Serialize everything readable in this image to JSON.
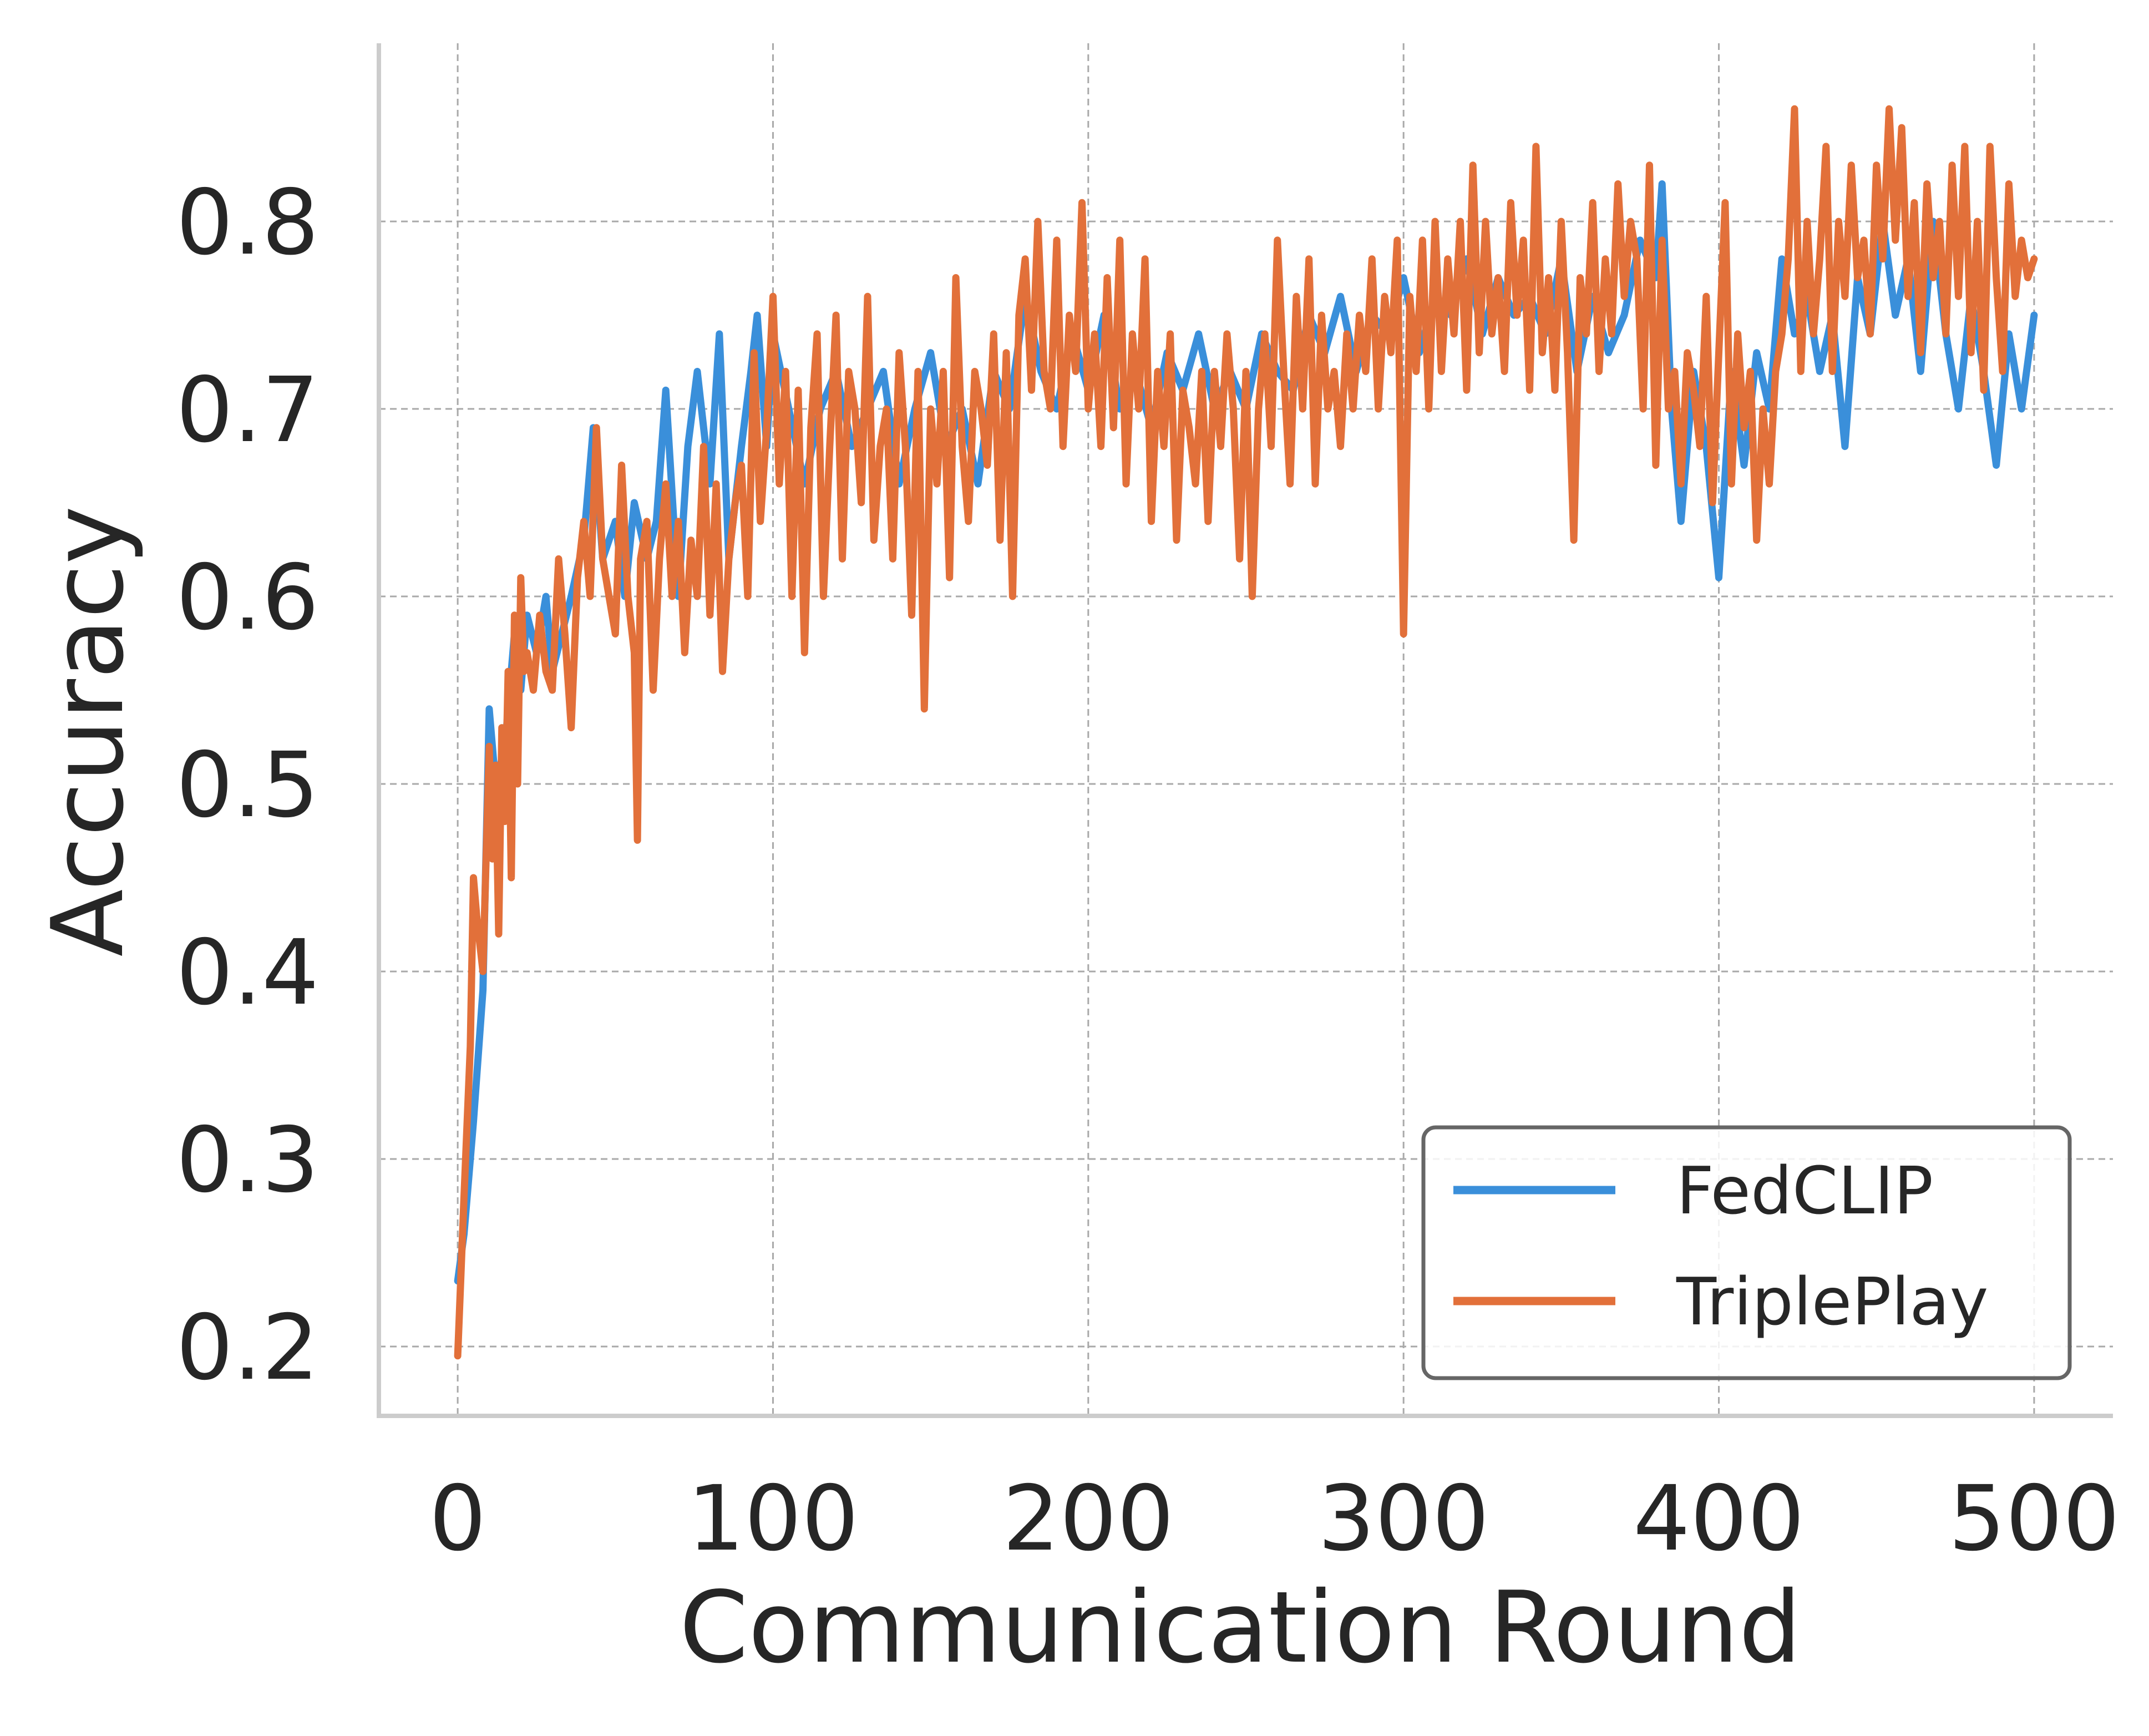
{
  "chart_data": {
    "type": "line",
    "title": "",
    "xlabel": "Communication Round",
    "ylabel": "Accuracy",
    "xlim": [
      -25,
      525
    ],
    "ylim": [
      0.163,
      0.895
    ],
    "xticks": [
      0,
      100,
      200,
      300,
      400,
      500
    ],
    "xtick_labels": [
      "0",
      "100",
      "200",
      "300",
      "400",
      "500"
    ],
    "yticks": [
      0.2,
      0.3,
      0.4,
      0.5,
      0.6,
      0.7,
      0.8
    ],
    "ytick_labels": [
      "0.2",
      "0.3",
      "0.4",
      "0.5",
      "0.6",
      "0.7",
      "0.8"
    ],
    "grid": true,
    "legend_position": "bottom-right",
    "legend": [
      "FedCLIP",
      "TriplePlay"
    ],
    "series": [
      {
        "name": "FedCLIP",
        "color": "#3a8fda",
        "x": [
          0,
          2,
          5,
          8,
          10,
          12,
          15,
          18,
          20,
          22,
          25,
          28,
          30,
          33,
          36,
          40,
          43,
          46,
          50,
          53,
          56,
          60,
          63,
          66,
          70,
          73,
          76,
          80,
          83,
          86,
          90,
          93,
          95,
          98,
          100,
          105,
          110,
          115,
          120,
          125,
          130,
          135,
          140,
          145,
          150,
          155,
          160,
          165,
          170,
          175,
          180,
          185,
          190,
          195,
          200,
          205,
          210,
          215,
          220,
          225,
          230,
          235,
          240,
          245,
          250,
          255,
          260,
          265,
          270,
          275,
          280,
          285,
          290,
          295,
          300,
          305,
          310,
          315,
          320,
          325,
          330,
          335,
          340,
          345,
          350,
          355,
          360,
          365,
          370,
          375,
          380,
          382,
          385,
          388,
          392,
          396,
          400,
          404,
          408,
          412,
          416,
          420,
          424,
          428,
          432,
          436,
          440,
          444,
          448,
          452,
          456,
          460,
          464,
          468,
          472,
          476,
          480,
          484,
          488,
          492,
          496,
          500
        ],
        "y": [
          0.235,
          0.26,
          0.32,
          0.39,
          0.54,
          0.5,
          0.52,
          0.58,
          0.55,
          0.59,
          0.57,
          0.6,
          0.56,
          0.58,
          0.6,
          0.63,
          0.69,
          0.62,
          0.64,
          0.6,
          0.65,
          0.62,
          0.64,
          0.71,
          0.6,
          0.68,
          0.72,
          0.66,
          0.74,
          0.62,
          0.68,
          0.72,
          0.75,
          0.68,
          0.74,
          0.7,
          0.66,
          0.7,
          0.72,
          0.68,
          0.7,
          0.72,
          0.66,
          0.7,
          0.73,
          0.68,
          0.7,
          0.66,
          0.72,
          0.7,
          0.76,
          0.72,
          0.7,
          0.74,
          0.71,
          0.75,
          0.7,
          0.72,
          0.69,
          0.73,
          0.71,
          0.74,
          0.7,
          0.72,
          0.7,
          0.74,
          0.72,
          0.71,
          0.75,
          0.73,
          0.76,
          0.72,
          0.75,
          0.74,
          0.77,
          0.73,
          0.76,
          0.75,
          0.78,
          0.74,
          0.77,
          0.75,
          0.76,
          0.74,
          0.78,
          0.72,
          0.76,
          0.73,
          0.75,
          0.79,
          0.77,
          0.82,
          0.7,
          0.64,
          0.72,
          0.68,
          0.61,
          0.72,
          0.67,
          0.73,
          0.7,
          0.78,
          0.74,
          0.76,
          0.72,
          0.75,
          0.68,
          0.77,
          0.74,
          0.8,
          0.75,
          0.78,
          0.72,
          0.8,
          0.74,
          0.7,
          0.76,
          0.72,
          0.67,
          0.74,
          0.7,
          0.75
        ]
      },
      {
        "name": "TriplePlay",
        "color": "#e2703a",
        "x": [
          0,
          2,
          4,
          5,
          6,
          8,
          10,
          11,
          12,
          13,
          14,
          15,
          16,
          17,
          18,
          19,
          20,
          21,
          22,
          24,
          26,
          28,
          30,
          32,
          34,
          36,
          38,
          40,
          42,
          44,
          46,
          48,
          50,
          52,
          54,
          56,
          57,
          58,
          60,
          62,
          64,
          66,
          68,
          70,
          72,
          74,
          76,
          78,
          80,
          82,
          84,
          86,
          88,
          90,
          92,
          94,
          96,
          98,
          100,
          102,
          104,
          106,
          108,
          110,
          112,
          114,
          116,
          118,
          120,
          122,
          124,
          126,
          128,
          130,
          132,
          134,
          136,
          138,
          140,
          142,
          144,
          146,
          148,
          150,
          152,
          154,
          156,
          158,
          160,
          162,
          164,
          166,
          168,
          170,
          172,
          174,
          176,
          178,
          180,
          182,
          184,
          186,
          188,
          190,
          192,
          194,
          196,
          198,
          200,
          202,
          204,
          206,
          208,
          210,
          212,
          214,
          216,
          218,
          220,
          222,
          224,
          226,
          228,
          230,
          232,
          234,
          236,
          238,
          240,
          242,
          244,
          246,
          248,
          250,
          252,
          254,
          256,
          258,
          260,
          262,
          264,
          266,
          268,
          270,
          272,
          274,
          276,
          278,
          280,
          282,
          284,
          286,
          288,
          290,
          292,
          294,
          296,
          298,
          300,
          302,
          304,
          306,
          308,
          310,
          312,
          314,
          316,
          318,
          320,
          322,
          324,
          326,
          328,
          330,
          332,
          334,
          336,
          338,
          340,
          342,
          344,
          346,
          348,
          350,
          352,
          354,
          356,
          358,
          360,
          362,
          364,
          366,
          368,
          370,
          372,
          374,
          376,
          378,
          380,
          382,
          384,
          386,
          388,
          390,
          392,
          394,
          396,
          398,
          400,
          402,
          404,
          406,
          408,
          410,
          412,
          414,
          416,
          418,
          420,
          422,
          424,
          426,
          428,
          430,
          432,
          434,
          436,
          438,
          440,
          442,
          444,
          446,
          448,
          450,
          452,
          454,
          456,
          458,
          460,
          462,
          464,
          466,
          468,
          470,
          472,
          474,
          476,
          478,
          480,
          482,
          484,
          486,
          488,
          490,
          492,
          494,
          496,
          498,
          500
        ],
        "y": [
          0.195,
          0.28,
          0.36,
          0.45,
          0.43,
          0.4,
          0.52,
          0.46,
          0.51,
          0.42,
          0.53,
          0.48,
          0.56,
          0.45,
          0.59,
          0.5,
          0.61,
          0.56,
          0.57,
          0.55,
          0.59,
          0.56,
          0.55,
          0.62,
          0.58,
          0.53,
          0.61,
          0.64,
          0.6,
          0.69,
          0.62,
          0.6,
          0.58,
          0.67,
          0.6,
          0.57,
          0.47,
          0.62,
          0.64,
          0.55,
          0.62,
          0.66,
          0.6,
          0.64,
          0.57,
          0.63,
          0.6,
          0.68,
          0.59,
          0.66,
          0.56,
          0.62,
          0.65,
          0.67,
          0.6,
          0.73,
          0.64,
          0.69,
          0.76,
          0.66,
          0.72,
          0.6,
          0.71,
          0.57,
          0.69,
          0.74,
          0.6,
          0.68,
          0.75,
          0.62,
          0.72,
          0.7,
          0.65,
          0.76,
          0.63,
          0.68,
          0.7,
          0.62,
          0.73,
          0.68,
          0.59,
          0.72,
          0.54,
          0.7,
          0.66,
          0.72,
          0.61,
          0.77,
          0.68,
          0.64,
          0.72,
          0.7,
          0.67,
          0.74,
          0.63,
          0.73,
          0.6,
          0.75,
          0.78,
          0.71,
          0.8,
          0.72,
          0.7,
          0.79,
          0.68,
          0.75,
          0.72,
          0.81,
          0.7,
          0.74,
          0.68,
          0.77,
          0.69,
          0.79,
          0.66,
          0.74,
          0.7,
          0.78,
          0.64,
          0.72,
          0.68,
          0.74,
          0.63,
          0.71,
          0.69,
          0.66,
          0.72,
          0.64,
          0.72,
          0.68,
          0.74,
          0.7,
          0.62,
          0.72,
          0.6,
          0.7,
          0.74,
          0.68,
          0.79,
          0.72,
          0.66,
          0.76,
          0.7,
          0.78,
          0.66,
          0.75,
          0.7,
          0.72,
          0.68,
          0.74,
          0.7,
          0.75,
          0.72,
          0.78,
          0.7,
          0.76,
          0.73,
          0.79,
          0.58,
          0.76,
          0.72,
          0.79,
          0.7,
          0.8,
          0.72,
          0.78,
          0.74,
          0.8,
          0.71,
          0.83,
          0.73,
          0.8,
          0.74,
          0.77,
          0.72,
          0.81,
          0.75,
          0.79,
          0.71,
          0.84,
          0.73,
          0.77,
          0.71,
          0.8,
          0.73,
          0.63,
          0.77,
          0.74,
          0.81,
          0.72,
          0.78,
          0.74,
          0.82,
          0.76,
          0.8,
          0.78,
          0.7,
          0.83,
          0.67,
          0.79,
          0.7,
          0.72,
          0.66,
          0.73,
          0.71,
          0.68,
          0.76,
          0.65,
          0.73,
          0.81,
          0.66,
          0.74,
          0.69,
          0.72,
          0.63,
          0.7,
          0.66,
          0.72,
          0.74,
          0.78,
          0.86,
          0.72,
          0.8,
          0.74,
          0.78,
          0.84,
          0.72,
          0.8,
          0.76,
          0.83,
          0.77,
          0.79,
          0.74,
          0.83,
          0.78,
          0.86,
          0.79,
          0.85,
          0.76,
          0.81,
          0.73,
          0.82,
          0.77,
          0.8,
          0.74,
          0.83,
          0.76,
          0.84,
          0.73,
          0.8,
          0.71,
          0.84,
          0.77,
          0.72,
          0.82,
          0.76,
          0.79,
          0.77,
          0.78
        ]
      }
    ]
  }
}
